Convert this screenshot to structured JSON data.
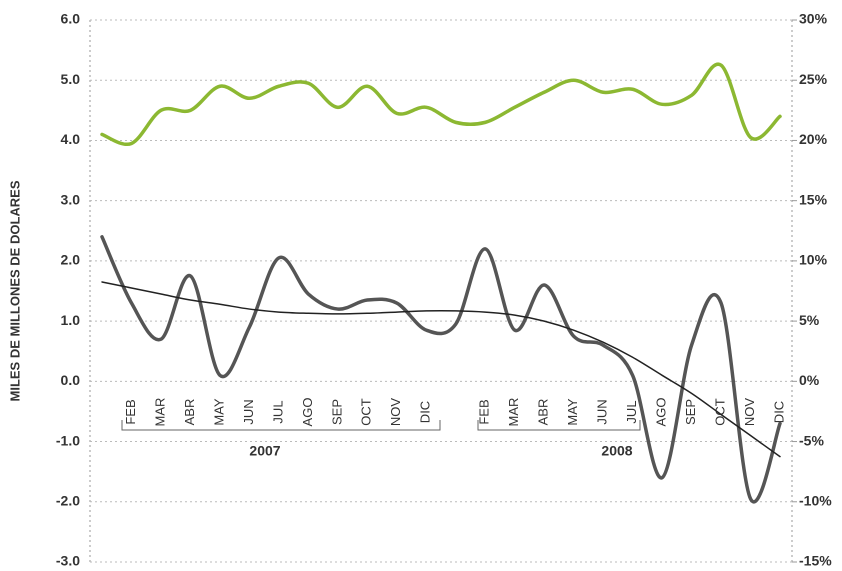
{
  "chart_data": {
    "type": "line",
    "y_axis_label": "MILES DE MILLONES DE DOLARES",
    "categories": [
      null,
      "FEB",
      "MAR",
      "ABR",
      "MAY",
      "JUN",
      "JUL",
      "AGO",
      "SEP",
      "OCT",
      "NOV",
      "DIC",
      null,
      "FEB",
      "MAR",
      "ABR",
      "MAY",
      "JUN",
      "JUL",
      "AGO",
      "SEP",
      "OCT",
      "NOV",
      "DIC"
    ],
    "year_labels": [
      "2007",
      "2008"
    ],
    "series": [
      {
        "color": "#8cb832",
        "axis": "y2",
        "width": 3.5,
        "values": [
          20.5,
          19.75,
          22.5,
          22.5,
          24.5,
          23.5,
          24.5,
          24.75,
          22.75,
          24.5,
          22.25,
          22.75,
          21.5,
          21.5,
          22.75,
          24,
          25,
          24,
          24.25,
          23,
          23.75,
          26.25,
          20.25,
          22
        ]
      },
      {
        "color": "#555555",
        "width": 3.5,
        "values": [
          2.4,
          1.3,
          0.7,
          1.75,
          0.1,
          0.9,
          2.05,
          1.45,
          1.2,
          1.35,
          1.3,
          0.85,
          0.95,
          2.2,
          0.85,
          1.6,
          0.75,
          0.6,
          0.1,
          -1.6,
          0.6,
          1.3,
          -1.95,
          -0.7
        ]
      },
      {
        "color": "#222222",
        "width": 1.5,
        "values": [
          1.65,
          1.55,
          1.45,
          1.35,
          1.28,
          1.2,
          1.15,
          1.13,
          1.12,
          1.13,
          1.15,
          1.17,
          1.17,
          1.15,
          1.1,
          1.0,
          0.85,
          0.65,
          0.4,
          0.1,
          -0.2,
          -0.55,
          -0.9,
          -1.25
        ]
      }
    ],
    "ylim": [
      -3,
      6
    ],
    "yticks": [
      {
        "value": -3,
        "label": "-3.0"
      },
      {
        "value": -2,
        "label": "-2.0"
      },
      {
        "value": -1,
        "label": "-1.0"
      },
      {
        "value": 0,
        "label": "0.0"
      },
      {
        "value": 1,
        "label": "1.0"
      },
      {
        "value": 2,
        "label": "2.0"
      },
      {
        "value": 3,
        "label": "3.0"
      },
      {
        "value": 4,
        "label": "4.0"
      },
      {
        "value": 5,
        "label": "5.0"
      },
      {
        "value": 6,
        "label": "6.0"
      }
    ],
    "y2lim": [
      -15,
      30
    ],
    "y2ticks": [
      {
        "value": -15,
        "label": "-15%"
      },
      {
        "value": -10,
        "label": "-10%"
      },
      {
        "value": -5,
        "label": "-5%"
      },
      {
        "value": 0,
        "label": "0%"
      },
      {
        "value": 5,
        "label": "5%"
      },
      {
        "value": 10,
        "label": "10%"
      },
      {
        "value": 15,
        "label": "15%"
      },
      {
        "value": 20,
        "label": "20%"
      },
      {
        "value": 25,
        "label": "25%"
      },
      {
        "value": 30,
        "label": "30%"
      }
    ],
    "grid": true
  }
}
